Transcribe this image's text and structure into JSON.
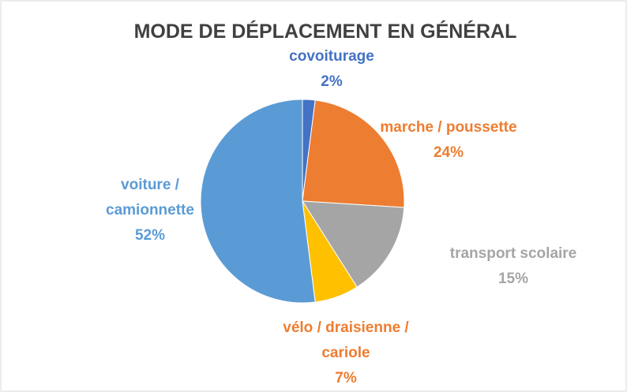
{
  "chart_data": {
    "type": "pie",
    "title": "MODE DE DÉPLACEMENT EN GÉNÉRAL",
    "categories": [
      "covoiturage",
      "marche / poussette",
      "transport scolaire",
      "vélo / draisienne / cariole",
      "voiture / camionnette"
    ],
    "values": [
      2,
      24,
      15,
      7,
      52
    ],
    "value_labels": [
      "2%",
      "24%",
      "15%",
      "7%",
      "52%"
    ],
    "colors": [
      "#4472c4",
      "#ed7d31",
      "#a5a5a5",
      "#ffc000",
      "#5b9bd5"
    ],
    "label_colors": [
      "#4472c4",
      "#ed7d31",
      "#a5a5a5",
      "#ed7d31",
      "#5b9bd5"
    ]
  }
}
